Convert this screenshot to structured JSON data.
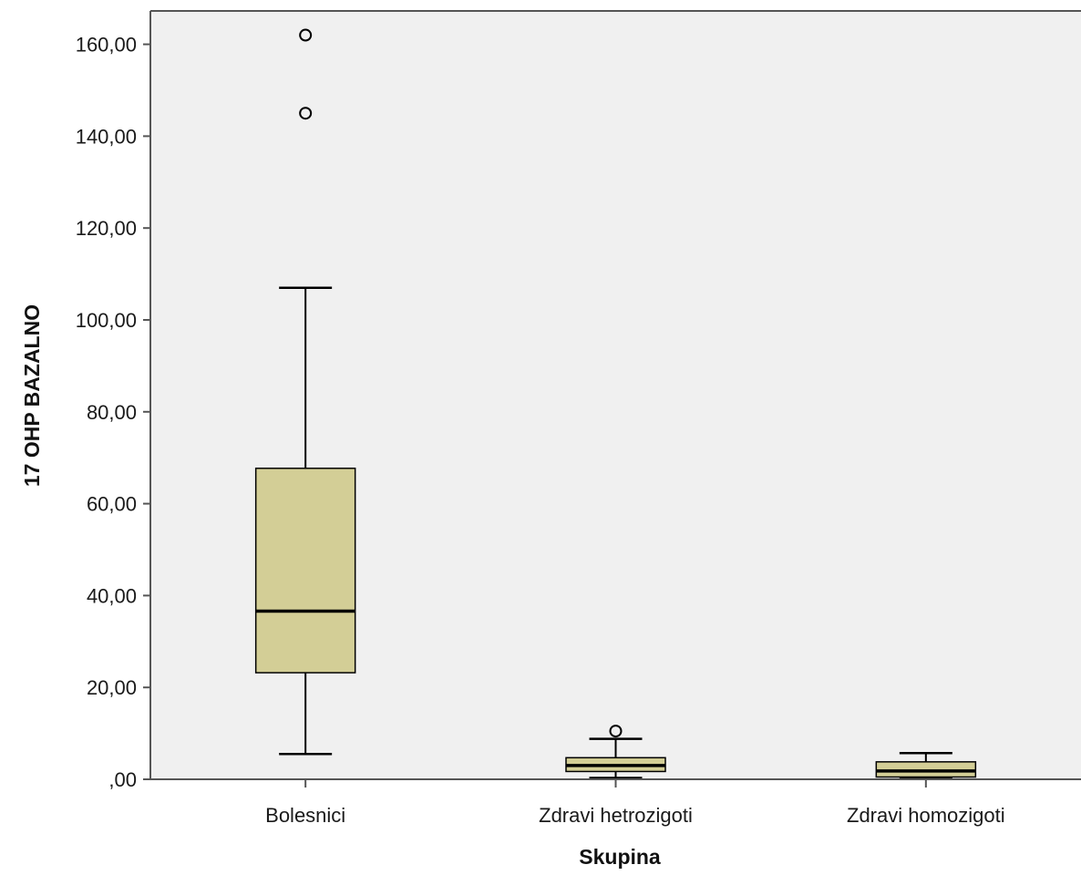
{
  "chart_data": {
    "type": "boxplot",
    "xlabel": "Skupina",
    "ylabel": "17 OHP BAZALNO",
    "ylim": [
      0,
      165
    ],
    "yticks": [
      0,
      20,
      40,
      60,
      80,
      100,
      120,
      140,
      160
    ],
    "ytick_labels": [
      ",00",
      "20,00",
      "40,00",
      "60,00",
      "80,00",
      "100,00",
      "120,00",
      "140,00",
      "160,00"
    ],
    "categories": [
      "Bolesnici",
      "Zdravi hetrozigoti",
      "Zdravi homozigoti"
    ],
    "boxes": [
      {
        "category": "Bolesnici",
        "whisker_low": 5.5,
        "q1": 23.2,
        "median": 36.6,
        "q3": 67.7,
        "whisker_high": 107.0,
        "outliers": [
          145.0,
          162.0
        ]
      },
      {
        "category": "Zdravi hetrozigoti",
        "whisker_low": 0.3,
        "q1": 1.7,
        "median": 3.0,
        "q3": 4.7,
        "whisker_high": 8.8,
        "outliers": [
          10.5
        ]
      },
      {
        "category": "Zdravi homozigoti",
        "whisker_low": 0.2,
        "q1": 0.5,
        "median": 1.8,
        "q3": 3.8,
        "whisker_high": 5.7,
        "outliers": []
      }
    ],
    "grid": false,
    "colors": {
      "box_fill": "#d3ce96",
      "plot_background": "#f0f0f0",
      "stroke": "#000000"
    }
  }
}
